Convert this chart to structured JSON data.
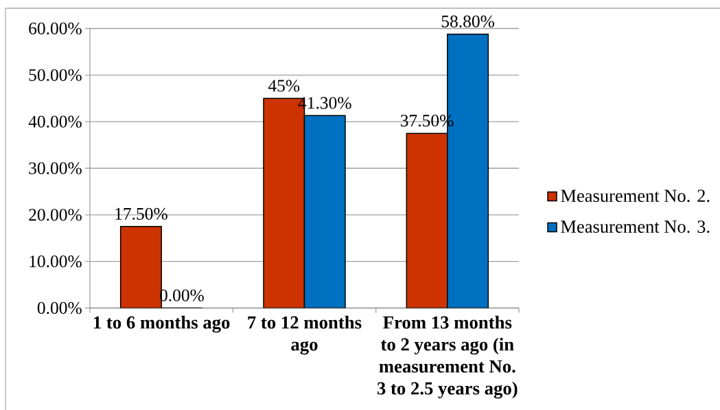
{
  "chart_data": {
    "type": "bar",
    "categories": [
      "1 to 6 months ago",
      "7 to 12 months ago",
      "From 13 months to 2 years ago (in measurement No. 3 to 2.5 years ago)"
    ],
    "series": [
      {
        "name": "Measurement No. 2.",
        "color": "#cc3300",
        "values": [
          17.5,
          45,
          37.5
        ],
        "value_labels": [
          "17.50%",
          "45%",
          "37.50%"
        ]
      },
      {
        "name": "Measurement No. 3.",
        "color": "#0070c0",
        "values": [
          0,
          41.3,
          58.8
        ],
        "value_labels": [
          "0.00%",
          "41.30%",
          "58.80%"
        ]
      }
    ],
    "ylim": [
      0,
      60
    ],
    "yticks": [
      {
        "value": 0,
        "label": "0.00%"
      },
      {
        "value": 10,
        "label": "10.00%"
      },
      {
        "value": 20,
        "label": "20.00%"
      },
      {
        "value": 30,
        "label": "30.00%"
      },
      {
        "value": 40,
        "label": "40.00%"
      },
      {
        "value": 50,
        "label": "50.00%"
      },
      {
        "value": 60,
        "label": "60.00%"
      }
    ],
    "grid": "y",
    "legend": "right"
  }
}
